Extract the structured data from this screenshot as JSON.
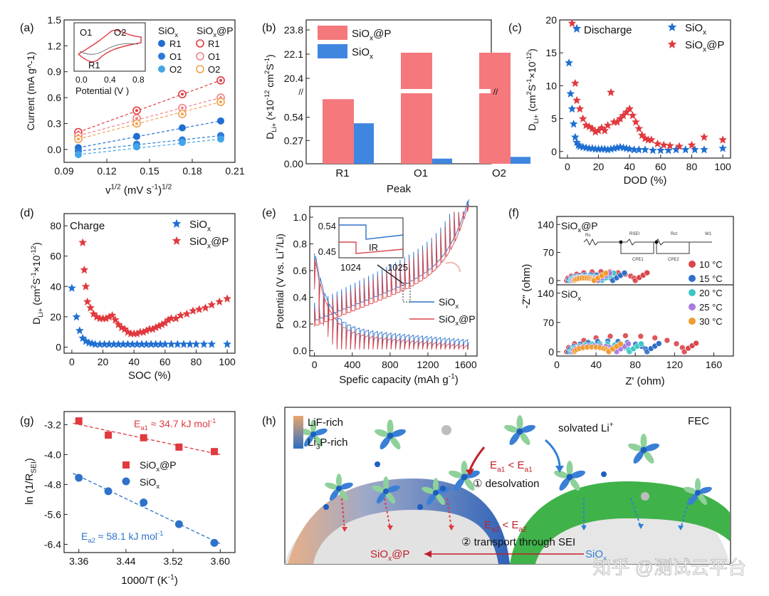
{
  "figure": {
    "watermark": "知乎 @测试云平台",
    "colors": {
      "red": "#e0393e",
      "blue": "#1f6fd0",
      "lightblue": "#4aa3e6",
      "orange": "#f0a04b",
      "pink": "#f07f86",
      "salmon": "#f4787c",
      "green": "#3fb24a"
    }
  },
  "chart_data": [
    {
      "panel": "(a)",
      "type": "scatter",
      "xlabel": "v^1/2 (mV s^-1)^1/2",
      "ylabel": "Current (mA g^-1)",
      "xlim": [
        0.09,
        0.21
      ],
      "ylim": [
        -0.15,
        1.5
      ],
      "xticks": [
        "0.09",
        "0.12",
        "0.15",
        "0.18",
        "0.21"
      ],
      "yticks": [
        "0.0",
        "0.3",
        "0.6",
        "0.9",
        "1.2",
        "1.5"
      ],
      "x": [
        0.1,
        0.141,
        0.173,
        0.2
      ],
      "legend_headers": [
        "SiOx",
        "SiOx@P"
      ],
      "series": [
        {
          "name": "R1",
          "group": "SiOx@P",
          "values": [
            0.2,
            0.45,
            0.64,
            0.8
          ]
        },
        {
          "name": "O1",
          "group": "SiOx@P",
          "values": [
            0.16,
            0.36,
            0.48,
            0.6
          ]
        },
        {
          "name": "O2",
          "group": "SiOx@P",
          "values": [
            0.12,
            0.3,
            0.41,
            0.55
          ]
        },
        {
          "name": "R1",
          "group": "SiOx",
          "values": [
            0.02,
            0.15,
            0.25,
            0.33
          ]
        },
        {
          "name": "O1",
          "group": "SiOx",
          "values": [
            -0.02,
            0.06,
            0.11,
            0.16
          ]
        },
        {
          "name": "O2",
          "group": "SiOx",
          "values": [
            -0.06,
            0.03,
            0.08,
            0.12
          ]
        }
      ],
      "inset": {
        "xlabel": "Potential (V )",
        "xticks": [
          "0.0",
          "0.4",
          "0.8"
        ],
        "labels": [
          "O1",
          "O2",
          "R1"
        ]
      }
    },
    {
      "panel": "(b)",
      "type": "bar",
      "categories": [
        "R1",
        "O1",
        "O2"
      ],
      "xlabel": "Peak",
      "ylabel": "DLi+ (×10^-12 cm2 S^-1)",
      "yticks_low": [
        "0.00",
        "0.27",
        "0.54"
      ],
      "yticks_high": [
        "20.4",
        "22.1",
        "23.8"
      ],
      "series": [
        {
          "name": "SiOx@P",
          "values": [
            0.75,
            22.2,
            22.2
          ]
        },
        {
          "name": "SiOx",
          "values": [
            0.47,
            0.06,
            0.08
          ]
        }
      ]
    },
    {
      "panel": "(c)",
      "type": "scatter",
      "title": "Discharge",
      "xlabel": "DOD (%)",
      "ylabel": "DLi+ (cm2S^-1×10^-12)",
      "xlim": [
        -5,
        105
      ],
      "ylim": [
        -1,
        20
      ],
      "xticks": [
        "0",
        "20",
        "40",
        "60",
        "80",
        "100"
      ],
      "yticks": [
        "0",
        "5",
        "10",
        "15",
        "20"
      ],
      "series": [
        {
          "name": "SiOx",
          "x": [
            1,
            2,
            3,
            4,
            5,
            6,
            7,
            8,
            10,
            12,
            14,
            16,
            18,
            20,
            22,
            24,
            26,
            28,
            30,
            32,
            34,
            36,
            38,
            40,
            43,
            46,
            50,
            55,
            60,
            65,
            70,
            76,
            82,
            88,
            100
          ],
          "y": [
            13.5,
            8.8,
            6.5,
            4.2,
            2.2,
            1.4,
            1.0,
            0.8,
            0.7,
            0.6,
            0.5,
            0.5,
            0.4,
            0.4,
            0.4,
            0.4,
            0.3,
            0.4,
            0.5,
            0.6,
            0.7,
            0.6,
            0.5,
            0.4,
            0.3,
            0.3,
            0.3,
            0.2,
            0.2,
            0.2,
            0.3,
            0.3,
            0.3,
            0.3,
            0.5
          ]
        },
        {
          "name": "SiOx@P",
          "x": [
            3,
            5,
            6,
            8,
            10,
            12,
            14,
            16,
            18,
            20,
            22,
            24,
            26,
            28,
            30,
            32,
            34,
            36,
            38,
            40,
            42,
            44,
            46,
            48,
            50,
            52,
            54,
            58,
            62,
            66,
            72,
            80,
            88,
            100
          ],
          "y": [
            19.5,
            10.4,
            7.8,
            6.5,
            5.0,
            4.0,
            3.8,
            3.5,
            3.0,
            3.2,
            3.6,
            3.2,
            4.0,
            9.0,
            4.5,
            4.5,
            5.0,
            5.5,
            6.0,
            6.5,
            5.5,
            4.5,
            3.5,
            2.5,
            2.0,
            1.8,
            1.8,
            1.2,
            1.0,
            0.9,
            0.8,
            1.0,
            2.2,
            1.8
          ]
        }
      ]
    },
    {
      "panel": "(d)",
      "type": "scatter",
      "title": "Charge",
      "xlabel": "SOC (%)",
      "ylabel": "DLi+ (cm2S^-1×10^-12)",
      "xlim": [
        -5,
        105
      ],
      "ylim": [
        -4,
        88
      ],
      "xticks": [
        "0",
        "20",
        "40",
        "60",
        "80",
        "100"
      ],
      "yticks": [
        "0",
        "20",
        "40",
        "60",
        "80"
      ],
      "series": [
        {
          "name": "SiOx",
          "x": [
            0,
            3,
            5,
            7,
            9,
            11,
            13,
            15,
            18,
            21,
            24,
            27,
            30,
            33,
            36,
            39,
            42,
            45,
            48,
            51,
            54,
            57,
            60,
            64,
            68,
            72,
            76,
            80,
            85,
            90,
            100
          ],
          "y": [
            39,
            20,
            11,
            6,
            4,
            3,
            2.5,
            2,
            2,
            2,
            2,
            2,
            2,
            2,
            2,
            2,
            2,
            2,
            2,
            2,
            2,
            2,
            2,
            2,
            2,
            2,
            2,
            2,
            2,
            2,
            2
          ]
        },
        {
          "name": "SiOx@P",
          "x": [
            7,
            8,
            9,
            10,
            12,
            14,
            16,
            18,
            20,
            22,
            24,
            26,
            28,
            30,
            32,
            34,
            36,
            38,
            40,
            42,
            44,
            46,
            48,
            50,
            52,
            54,
            56,
            58,
            60,
            62,
            64,
            67,
            70,
            74,
            78,
            82,
            86,
            90,
            95,
            100
          ],
          "y": [
            69,
            51,
            40,
            30,
            26,
            22,
            20,
            19,
            19,
            19,
            20,
            21,
            18,
            15,
            13,
            12,
            10,
            9,
            9,
            9,
            10,
            10,
            11,
            12,
            12,
            13,
            14,
            15,
            16,
            18,
            19,
            19,
            21,
            22,
            24,
            25,
            26,
            28,
            30,
            32
          ]
        }
      ]
    },
    {
      "panel": "(e)",
      "type": "line",
      "xlabel": "Spefic capacity (mAh g^-1)",
      "ylabel": "Potential (V vs. Li+/Li)",
      "xlim": [
        -50,
        1720
      ],
      "ylim": [
        -0.04,
        1.08
      ],
      "xticks": [
        "0",
        "400",
        "800",
        "1200",
        "1600"
      ],
      "yticks": [
        "0.0",
        "0.2",
        "0.4",
        "0.6",
        "0.8",
        "1.0"
      ],
      "series": [
        {
          "name": "SiOx"
        },
        {
          "name": "SiOx@P"
        }
      ],
      "inset": {
        "xticks": [
          "1024",
          "1025"
        ],
        "yticks": [
          "0.54",
          "0.45"
        ],
        "label": "IR"
      }
    },
    {
      "panel": "(f)",
      "type": "scatter",
      "xlabel": "Z' (ohm)",
      "ylabel": "-Z\" (ohm)",
      "xticks": [
        "0",
        "40",
        "80",
        "120",
        "160"
      ],
      "yticks_top": [
        "0",
        "70",
        "140"
      ],
      "yticks_bottom": [
        "0",
        "70",
        "140"
      ],
      "top_label": "SiOx@P",
      "bottom_label": "SiOx",
      "circuit": [
        "Rs",
        "RSEI",
        "Rct",
        "W1",
        "CPE1",
        "CPE2"
      ],
      "series": [
        {
          "name": "10 °C",
          "rct_top": 70,
          "rct_bottom": 120
        },
        {
          "name": "15 °C",
          "rct_top": 45,
          "rct_bottom": 80
        },
        {
          "name": "20 °C",
          "rct_top": 32,
          "rct_bottom": 60
        },
        {
          "name": "25 °C",
          "rct_top": 26,
          "rct_bottom": 45
        },
        {
          "name": "30 °C",
          "rct_top": 20,
          "rct_bottom": 35
        }
      ]
    },
    {
      "panel": "(g)",
      "type": "scatter",
      "xlabel": "1000/T (K^-1)",
      "ylabel": "ln (1/RSEI)",
      "xlim": [
        3.335,
        3.625
      ],
      "ylim": [
        -6.62,
        -2.85
      ],
      "xticks": [
        "3.36",
        "3.44",
        "3.52",
        "3.60"
      ],
      "yticks": [
        "-3.2",
        "-4.0",
        "-4.8",
        "-5.6",
        "-6.4"
      ],
      "series": [
        {
          "name": "SiOx@P",
          "x": [
            3.36,
            3.41,
            3.47,
            3.53,
            3.59
          ],
          "y": [
            -3.1,
            -3.48,
            -3.55,
            -3.8,
            -3.92
          ],
          "ea": "Ea1 ≈ 34.7 kJ mol-1"
        },
        {
          "name": "SiOx",
          "x": [
            3.36,
            3.41,
            3.47,
            3.53,
            3.59
          ],
          "y": [
            -4.62,
            -4.98,
            -5.28,
            -5.86,
            -6.36
          ],
          "ea": "Ea2 ≈ 58.1 kJ mol-1"
        }
      ]
    },
    {
      "panel": "(h)",
      "type": "diagram",
      "labels": {
        "lif": "LiF-rich",
        "li3p": "Li3P-rich",
        "solvated": "solvated Li+",
        "fec": "FEC",
        "desolvation": "① desolvation",
        "transport": "② transport through SEI",
        "ea1": "Ea1 < Ea1",
        "ea2": "Ea2 < Ea2",
        "siox_p": "SiOx@P",
        "siox": "SiOx"
      }
    }
  ]
}
